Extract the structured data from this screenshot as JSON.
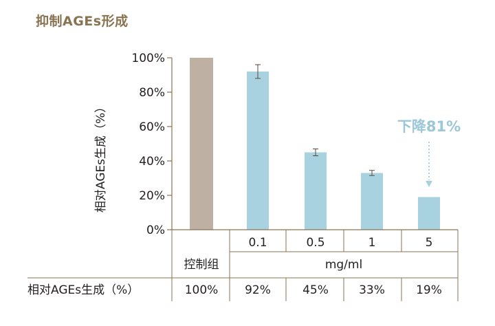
{
  "title": "抑制AGEs形成",
  "chart_data": {
    "type": "bar",
    "categories": [
      "控制组",
      "0.1",
      "0.5",
      "1",
      "5"
    ],
    "values": [
      100,
      92,
      45,
      33,
      19
    ],
    "errors": [
      0,
      4,
      2,
      1.5,
      0
    ],
    "ylabel": "相对AGEs生成（%）",
    "ylim": [
      0,
      100
    ],
    "yticks": [
      "0%",
      "20%",
      "40%",
      "60%",
      "80%",
      "100%"
    ],
    "unit_label": "mg/ml",
    "colors": {
      "control": "#bfb0a4",
      "treatment": "#a9d2e0",
      "axis": "#8a7350"
    },
    "annotation": {
      "text": "下降81%",
      "target_category": "5"
    },
    "table": {
      "row_label": "相对AGEs生成（%）",
      "values": [
        "100%",
        "92%",
        "45%",
        "33%",
        "19%"
      ]
    }
  }
}
